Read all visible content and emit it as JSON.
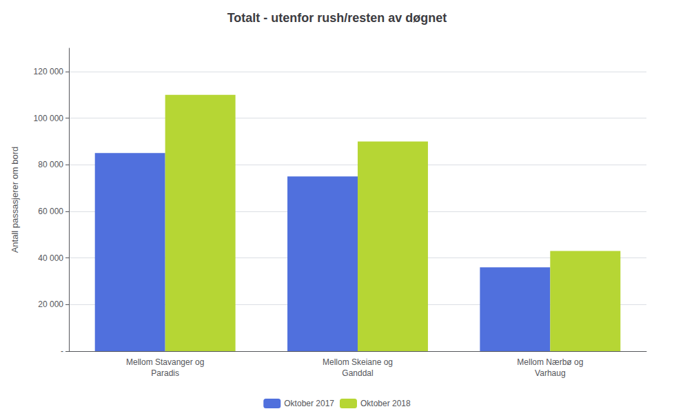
{
  "chart_data": {
    "type": "bar",
    "title": "Totalt - utenfor rush/resten av døgnet",
    "categories": [
      "Mellom Stavanger og\nParadis",
      "Mellom Skeiane og\nGanddal",
      "Mellom Nærbø og\nVarhaug"
    ],
    "series": [
      {
        "name": "Oktober 2017",
        "values": [
          85000,
          75000,
          36000
        ]
      },
      {
        "name": "Oktober 2018",
        "values": [
          110000,
          90000,
          43000
        ]
      }
    ],
    "ylabel": "Antall passasjerer om bord",
    "ylim": [
      0,
      130000
    ],
    "yticks": [
      {
        "value": 0,
        "label": "-"
      },
      {
        "value": 20000,
        "label": "20 000"
      },
      {
        "value": 40000,
        "label": "40 000"
      },
      {
        "value": 60000,
        "label": "60 000"
      },
      {
        "value": 80000,
        "label": "80 000"
      },
      {
        "value": 100000,
        "label": "100 000"
      },
      {
        "value": 120000,
        "label": "120 000"
      }
    ],
    "grid": true,
    "legend": "bottom"
  }
}
